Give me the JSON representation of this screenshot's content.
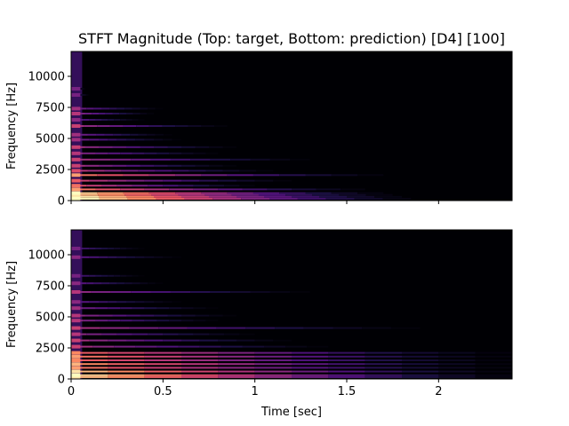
{
  "chart_data": {
    "type": "heatmap",
    "title": "STFT Magnitude (Top: target, Bottom: prediction) [D4] [100]",
    "xlabel": "Time [sec]",
    "colormap": "magma",
    "xlim": [
      0,
      2.4
    ],
    "x_ticks": [
      {
        "value": 0,
        "label": "0"
      },
      {
        "value": 0.5,
        "label": "0.5"
      },
      {
        "value": 1,
        "label": "1"
      },
      {
        "value": 1.5,
        "label": "1.5"
      },
      {
        "value": 2,
        "label": "2"
      }
    ],
    "panels": [
      {
        "name": "target",
        "ylabel": "Frequency [Hz]",
        "ylim": [
          0,
          12000
        ],
        "y_ticks": [
          {
            "value": 0,
            "label": "0"
          },
          {
            "value": 2500,
            "label": "2500"
          },
          {
            "value": 5000,
            "label": "5000"
          },
          {
            "value": 7500,
            "label": "7500"
          },
          {
            "value": 10000,
            "label": "10000"
          }
        ],
        "harmonics": [
          {
            "freq": 150,
            "duration": 1.85,
            "peak": 0.98
          },
          {
            "freq": 300,
            "duration": 1.8,
            "peak": 0.95
          },
          {
            "freq": 450,
            "duration": 1.75,
            "peak": 0.85
          },
          {
            "freq": 600,
            "duration": 1.7,
            "peak": 0.9
          },
          {
            "freq": 900,
            "duration": 1.6,
            "peak": 0.7
          },
          {
            "freq": 1200,
            "duration": 1.0,
            "peak": 0.6
          },
          {
            "freq": 1600,
            "duration": 1.2,
            "peak": 0.55
          },
          {
            "freq": 2050,
            "duration": 1.7,
            "peak": 0.7
          },
          {
            "freq": 2400,
            "duration": 1.1,
            "peak": 0.5
          },
          {
            "freq": 2800,
            "duration": 0.9,
            "peak": 0.45
          },
          {
            "freq": 3300,
            "duration": 1.3,
            "peak": 0.45
          },
          {
            "freq": 3800,
            "duration": 0.8,
            "peak": 0.4
          },
          {
            "freq": 4300,
            "duration": 0.9,
            "peak": 0.45
          },
          {
            "freq": 4900,
            "duration": 0.6,
            "peak": 0.35
          },
          {
            "freq": 5300,
            "duration": 0.55,
            "peak": 0.35
          },
          {
            "freq": 6000,
            "duration": 0.85,
            "peak": 0.45
          },
          {
            "freq": 6500,
            "duration": 0.4,
            "peak": 0.3
          },
          {
            "freq": 7000,
            "duration": 0.45,
            "peak": 0.4
          },
          {
            "freq": 7400,
            "duration": 0.5,
            "peak": 0.35
          },
          {
            "freq": 8500,
            "duration": 0.1,
            "peak": 0.25
          },
          {
            "freq": 9000,
            "duration": 0.08,
            "peak": 0.25
          }
        ]
      },
      {
        "name": "prediction",
        "ylabel": "Frequency [Hz]",
        "ylim": [
          0,
          12000
        ],
        "y_ticks": [
          {
            "value": 0,
            "label": "0"
          },
          {
            "value": 2500,
            "label": "2500"
          },
          {
            "value": 5000,
            "label": "5000"
          },
          {
            "value": 7500,
            "label": "7500"
          },
          {
            "value": 10000,
            "label": "10000"
          }
        ],
        "harmonics": [
          {
            "freq": 150,
            "duration": 2.4,
            "peak": 0.85
          },
          {
            "freq": 300,
            "duration": 2.4,
            "peak": 0.9
          },
          {
            "freq": 600,
            "duration": 2.4,
            "peak": 0.85
          },
          {
            "freq": 900,
            "duration": 2.4,
            "peak": 0.7
          },
          {
            "freq": 1200,
            "duration": 2.4,
            "peak": 0.75
          },
          {
            "freq": 1500,
            "duration": 2.4,
            "peak": 0.65
          },
          {
            "freq": 1800,
            "duration": 2.4,
            "peak": 0.7
          },
          {
            "freq": 2100,
            "duration": 2.4,
            "peak": 0.65
          },
          {
            "freq": 2600,
            "duration": 1.4,
            "peak": 0.45
          },
          {
            "freq": 3100,
            "duration": 1.2,
            "peak": 0.45
          },
          {
            "freq": 3600,
            "duration": 1.0,
            "peak": 0.4
          },
          {
            "freq": 4100,
            "duration": 1.9,
            "peak": 0.45
          },
          {
            "freq": 4700,
            "duration": 0.8,
            "peak": 0.4
          },
          {
            "freq": 5100,
            "duration": 0.9,
            "peak": 0.4
          },
          {
            "freq": 5700,
            "duration": 0.8,
            "peak": 0.35
          },
          {
            "freq": 6200,
            "duration": 0.6,
            "peak": 0.3
          },
          {
            "freq": 7000,
            "duration": 1.3,
            "peak": 0.4
          },
          {
            "freq": 7700,
            "duration": 0.5,
            "peak": 0.3
          },
          {
            "freq": 8300,
            "duration": 0.4,
            "peak": 0.25
          },
          {
            "freq": 9800,
            "duration": 0.6,
            "peak": 0.3
          },
          {
            "freq": 10500,
            "duration": 0.4,
            "peak": 0.25
          }
        ]
      }
    ]
  }
}
